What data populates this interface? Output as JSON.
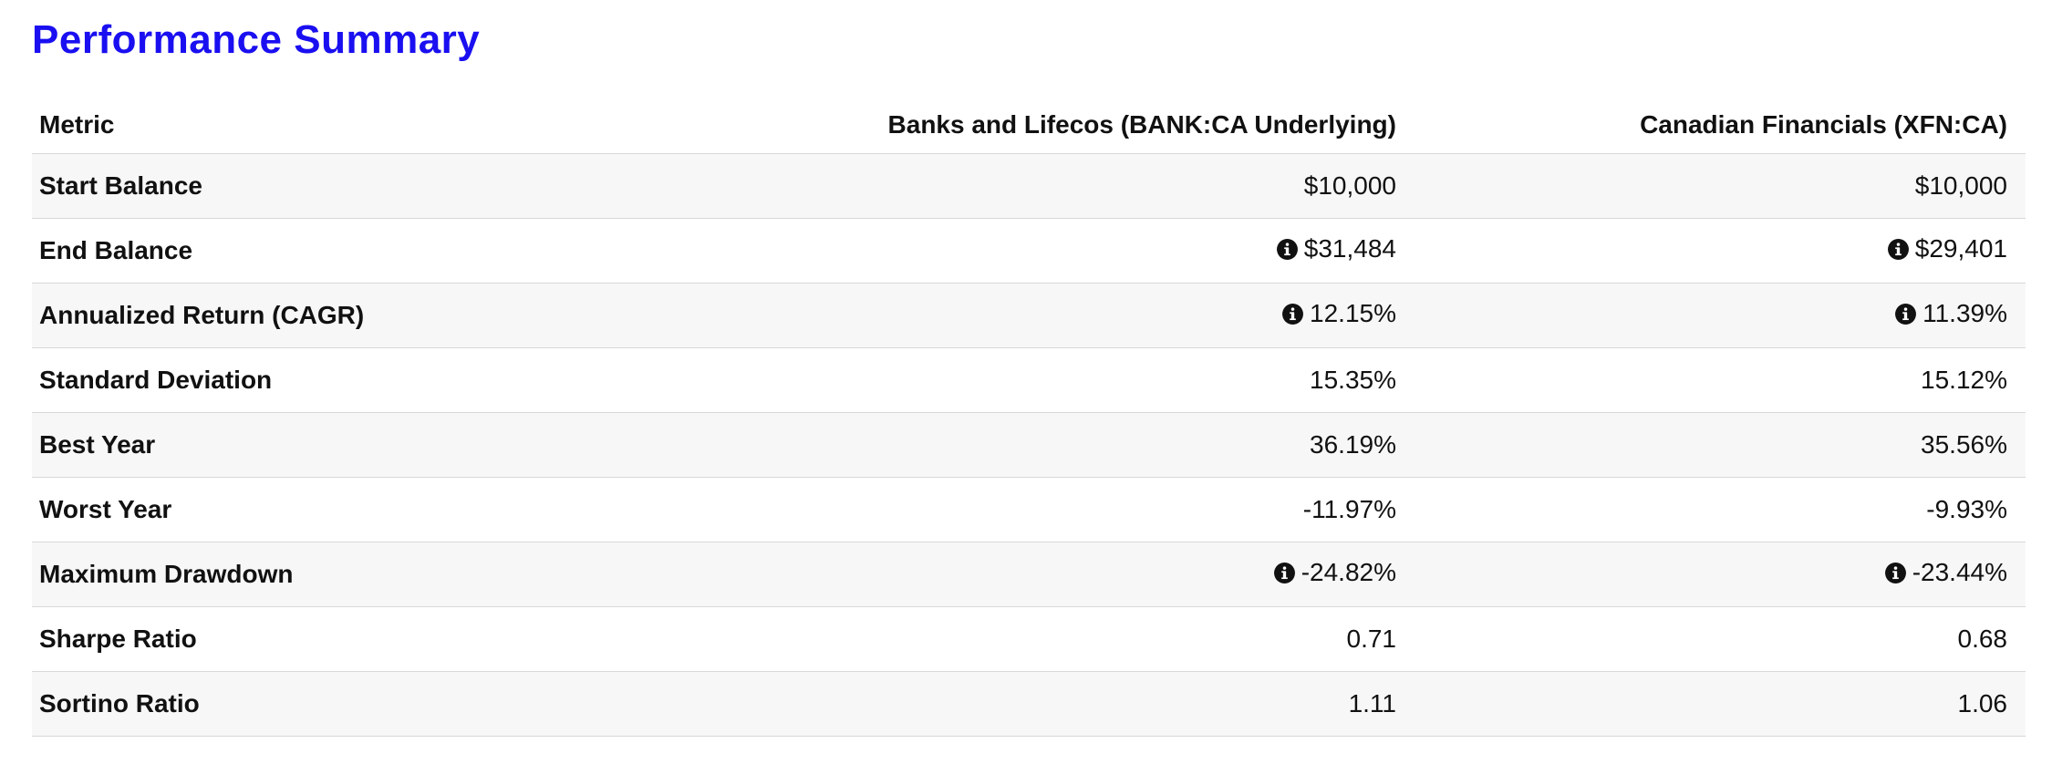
{
  "title": "Performance Summary",
  "table": {
    "headers": {
      "metric": "Metric",
      "portfolio_a": "Banks and Lifecos (BANK:CA Underlying)",
      "portfolio_b": "Canadian Financials (XFN:CA)"
    },
    "rows": [
      {
        "label": "Start Balance",
        "a": "$10,000",
        "b": "$10,000",
        "info_a": false,
        "info_b": false
      },
      {
        "label": "End Balance",
        "a": "$31,484",
        "b": "$29,401",
        "info_a": true,
        "info_b": true
      },
      {
        "label": "Annualized Return (CAGR)",
        "a": "12.15%",
        "b": "11.39%",
        "info_a": true,
        "info_b": true
      },
      {
        "label": "Standard Deviation",
        "a": "15.35%",
        "b": "15.12%",
        "info_a": false,
        "info_b": false
      },
      {
        "label": "Best Year",
        "a": "36.19%",
        "b": "35.56%",
        "info_a": false,
        "info_b": false
      },
      {
        "label": "Worst Year",
        "a": "-11.97%",
        "b": "-9.93%",
        "info_a": false,
        "info_b": false
      },
      {
        "label": "Maximum Drawdown",
        "a": "-24.82%",
        "b": "-23.44%",
        "info_a": true,
        "info_b": true
      },
      {
        "label": "Sharpe Ratio",
        "a": "0.71",
        "b": "0.68",
        "info_a": false,
        "info_b": false
      },
      {
        "label": "Sortino Ratio",
        "a": "1.11",
        "b": "1.06",
        "info_a": false,
        "info_b": false
      }
    ]
  },
  "icons": {
    "info": "info-circle-icon"
  },
  "colors": {
    "title": "#1a0ff0",
    "row_alt": "#f7f7f7",
    "border": "#d8d8d8"
  }
}
